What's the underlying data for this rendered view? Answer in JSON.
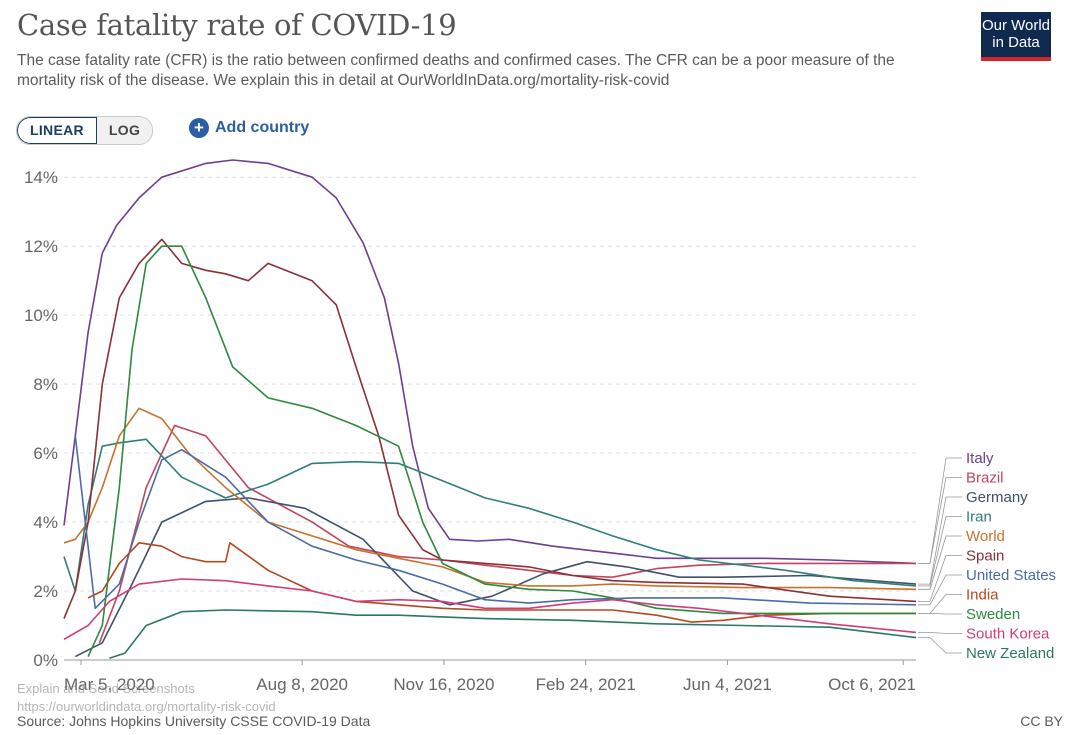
{
  "header": {
    "title": "Case fatality rate of COVID-19",
    "subtitle": "The case fatality rate (CFR) is the ratio between confirmed deaths and confirmed cases. The CFR can be a poor measure of the mortality risk of the disease. We explain this in detail at OurWorldInData.org/mortality-risk-covid",
    "logo_line1": "Our World",
    "logo_line2": "in Data"
  },
  "controls": {
    "linear_label": "LINEAR",
    "log_label": "LOG",
    "add_country_label": "Add country",
    "plus_icon": "plus-circle-icon"
  },
  "footer": {
    "source": "Source: Johns Hopkins University CSSE COVID-19 Data",
    "license": "CC BY",
    "overlay_text": "Explain and Send Screenshots",
    "overlay_url": "https://ourworldindata.org/mortality-risk-covid"
  },
  "chart_data": {
    "type": "line",
    "title": "Case fatality rate of COVID-19",
    "xlabel": "",
    "ylabel": "",
    "ylim": [
      0,
      14.5
    ],
    "x_ticks": [
      "Mar 5, 2020",
      "Aug 8, 2020",
      "Nov 16, 2020",
      "Feb 24, 2021",
      "Jun 4, 2021",
      "Oct 6, 2021"
    ],
    "y_ticks": [
      "0%",
      "2%",
      "4%",
      "6%",
      "8%",
      "10%",
      "12%",
      "14%"
    ],
    "grid": true,
    "legend_position": "right",
    "series": [
      {
        "name": "Italy",
        "color": "#6d3e91",
        "x": [
          "2020-02-22",
          "2020-03-01",
          "2020-03-10",
          "2020-03-20",
          "2020-03-30",
          "2020-04-15",
          "2020-05-01",
          "2020-06-01",
          "2020-06-20",
          "2020-07-15",
          "2020-08-15",
          "2020-09-01",
          "2020-09-20",
          "2020-10-05",
          "2020-10-15",
          "2020-10-25",
          "2020-11-05",
          "2020-11-20",
          "2020-12-10",
          "2021-01-01",
          "2021-02-01",
          "2021-03-15",
          "2021-04-15",
          "2021-05-15",
          "2021-07-01",
          "2021-08-15",
          "2021-10-15"
        ],
        "y": [
          3.9,
          6.5,
          9.5,
          11.8,
          12.6,
          13.4,
          14.0,
          14.4,
          14.5,
          14.4,
          14.0,
          13.4,
          12.1,
          10.5,
          8.6,
          6.2,
          4.4,
          3.5,
          3.45,
          3.5,
          3.3,
          3.1,
          2.95,
          2.95,
          2.95,
          2.9,
          2.8
        ]
      },
      {
        "name": "Brazil",
        "color": "#c2455c",
        "x": [
          "2020-03-18",
          "2020-04-01",
          "2020-04-20",
          "2020-05-10",
          "2020-06-01",
          "2020-07-01",
          "2020-08-15",
          "2020-09-10",
          "2020-10-15",
          "2020-11-15",
          "2020-12-15",
          "2021-01-15",
          "2021-02-15",
          "2021-03-15",
          "2021-04-15",
          "2021-05-15",
          "2021-07-01",
          "2021-08-15",
          "2021-10-15"
        ],
        "y": [
          0.5,
          2.0,
          5.0,
          6.8,
          6.5,
          5.0,
          4.0,
          3.3,
          3.0,
          2.9,
          2.75,
          2.6,
          2.45,
          2.4,
          2.65,
          2.75,
          2.8,
          2.8,
          2.8
        ]
      },
      {
        "name": "Germany",
        "color": "#3f5168",
        "x": [
          "2020-03-01",
          "2020-03-20",
          "2020-04-10",
          "2020-05-01",
          "2020-06-01",
          "2020-07-01",
          "2020-08-10",
          "2020-09-20",
          "2020-10-25",
          "2020-11-20",
          "2020-12-20",
          "2021-01-25",
          "2021-02-25",
          "2021-03-25",
          "2021-05-01",
          "2021-06-01",
          "2021-08-01",
          "2021-10-15"
        ],
        "y": [
          0.1,
          0.5,
          2.2,
          4.0,
          4.6,
          4.7,
          4.4,
          3.5,
          2.0,
          1.6,
          1.85,
          2.5,
          2.85,
          2.7,
          2.4,
          2.4,
          2.45,
          2.2
        ]
      },
      {
        "name": "Iran",
        "color": "#2f7f7a",
        "x": [
          "2020-02-22",
          "2020-03-01",
          "2020-03-10",
          "2020-03-20",
          "2020-04-01",
          "2020-04-20",
          "2020-05-15",
          "2020-06-15",
          "2020-07-15",
          "2020-08-15",
          "2020-09-15",
          "2020-10-15",
          "2020-11-15",
          "2020-12-15",
          "2021-01-15",
          "2021-02-15",
          "2021-03-15",
          "2021-04-15",
          "2021-05-15",
          "2021-07-15",
          "2021-09-01",
          "2021-10-15"
        ],
        "y": [
          3.0,
          2.0,
          4.5,
          6.2,
          6.3,
          6.4,
          5.3,
          4.7,
          5.1,
          5.7,
          5.75,
          5.7,
          5.2,
          4.7,
          4.4,
          4.0,
          3.6,
          3.2,
          2.9,
          2.6,
          2.3,
          2.15
        ]
      },
      {
        "name": "World",
        "color": "#c8722d",
        "x": [
          "2020-02-22",
          "2020-03-01",
          "2020-03-10",
          "2020-03-20",
          "2020-04-01",
          "2020-04-15",
          "2020-05-01",
          "2020-05-20",
          "2020-06-15",
          "2020-07-15",
          "2020-08-15",
          "2020-09-15",
          "2020-10-15",
          "2020-11-15",
          "2020-12-15",
          "2021-01-15",
          "2021-02-15",
          "2021-03-15",
          "2021-04-15",
          "2021-06-15",
          "2021-08-15",
          "2021-10-15"
        ],
        "y": [
          3.4,
          3.5,
          4.0,
          5.0,
          6.5,
          7.3,
          7.0,
          6.0,
          5.0,
          4.0,
          3.6,
          3.2,
          2.95,
          2.7,
          2.25,
          2.15,
          2.15,
          2.2,
          2.15,
          2.1,
          2.1,
          2.05
        ]
      },
      {
        "name": "Spain",
        "color": "#8c2f36",
        "x": [
          "2020-02-22",
          "2020-03-01",
          "2020-03-10",
          "2020-03-20",
          "2020-04-01",
          "2020-04-15",
          "2020-05-01",
          "2020-05-15",
          "2020-06-01",
          "2020-06-15",
          "2020-07-01",
          "2020-07-15",
          "2020-08-15",
          "2020-09-01",
          "2020-09-15",
          "2020-10-01",
          "2020-10-15",
          "2020-11-01",
          "2020-11-15",
          "2020-12-15",
          "2021-01-15",
          "2021-02-15",
          "2021-03-15",
          "2021-04-15",
          "2021-06-15",
          "2021-08-15",
          "2021-10-15"
        ],
        "y": [
          1.2,
          2.0,
          4.0,
          8.0,
          10.5,
          11.5,
          12.2,
          11.5,
          11.3,
          11.2,
          11.0,
          11.5,
          11.0,
          10.3,
          8.5,
          6.5,
          4.2,
          3.2,
          2.9,
          2.8,
          2.7,
          2.45,
          2.3,
          2.25,
          2.2,
          1.85,
          1.7
        ]
      },
      {
        "name": "United States",
        "color": "#4b6ca8",
        "x": [
          "2020-03-01",
          "2020-03-15",
          "2020-04-01",
          "2020-04-15",
          "2020-05-01",
          "2020-05-15",
          "2020-06-15",
          "2020-07-15",
          "2020-08-15",
          "2020-09-15",
          "2020-10-15",
          "2020-11-15",
          "2020-12-15",
          "2021-01-15",
          "2021-02-15",
          "2021-04-01",
          "2021-06-01",
          "2021-08-01",
          "2021-10-15"
        ],
        "y": [
          6.5,
          1.5,
          2.2,
          4.0,
          5.8,
          6.1,
          5.3,
          4.0,
          3.3,
          2.9,
          2.6,
          2.2,
          1.75,
          1.65,
          1.75,
          1.8,
          1.8,
          1.65,
          1.6
        ]
      },
      {
        "name": "India",
        "color": "#b5481e",
        "x": [
          "2020-03-10",
          "2020-03-20",
          "2020-04-01",
          "2020-04-15",
          "2020-05-01",
          "2020-05-15",
          "2020-06-01",
          "2020-06-15",
          "2020-06-18",
          "2020-07-15",
          "2020-08-15",
          "2020-09-15",
          "2020-10-15",
          "2020-11-15",
          "2020-12-15",
          "2021-01-15",
          "2021-02-15",
          "2021-03-15",
          "2021-04-15",
          "2021-05-10",
          "2021-06-01",
          "2021-07-01",
          "2021-08-15",
          "2021-10-15"
        ],
        "y": [
          1.8,
          2.0,
          2.8,
          3.4,
          3.3,
          3.0,
          2.85,
          2.85,
          3.4,
          2.6,
          2.0,
          1.7,
          1.6,
          1.5,
          1.45,
          1.45,
          1.45,
          1.45,
          1.3,
          1.1,
          1.15,
          1.3,
          1.35,
          1.35
        ]
      },
      {
        "name": "Sweden",
        "color": "#2d8a3e",
        "x": [
          "2020-03-10",
          "2020-03-20",
          "2020-04-01",
          "2020-04-10",
          "2020-04-20",
          "2020-05-01",
          "2020-05-15",
          "2020-06-01",
          "2020-06-20",
          "2020-07-15",
          "2020-08-15",
          "2020-09-15",
          "2020-10-15",
          "2020-11-01",
          "2020-11-15",
          "2020-12-15",
          "2021-01-15",
          "2021-02-15",
          "2021-03-15",
          "2021-04-15",
          "2021-06-01",
          "2021-08-15",
          "2021-10-15"
        ],
        "y": [
          0.1,
          1.0,
          5.0,
          9.0,
          11.5,
          12.0,
          12.0,
          10.5,
          8.5,
          7.6,
          7.3,
          6.8,
          6.2,
          4.0,
          2.8,
          2.2,
          2.05,
          2.0,
          1.8,
          1.5,
          1.35,
          1.35,
          1.35
        ]
      },
      {
        "name": "South Korea",
        "color": "#d13d7a",
        "x": [
          "2020-02-22",
          "2020-03-10",
          "2020-03-25",
          "2020-04-15",
          "2020-05-15",
          "2020-06-15",
          "2020-07-15",
          "2020-08-15",
          "2020-09-15",
          "2020-10-15",
          "2020-11-15",
          "2020-12-15",
          "2021-01-15",
          "2021-02-15",
          "2021-03-15",
          "2021-04-15",
          "2021-05-15",
          "2021-06-15",
          "2021-07-15",
          "2021-08-15",
          "2021-10-15"
        ],
        "y": [
          0.6,
          1.0,
          1.7,
          2.2,
          2.35,
          2.3,
          2.15,
          2.0,
          1.7,
          1.75,
          1.7,
          1.5,
          1.5,
          1.65,
          1.75,
          1.6,
          1.5,
          1.35,
          1.2,
          1.05,
          0.8
        ]
      },
      {
        "name": "New Zealand",
        "color": "#2a7a5e",
        "x": [
          "2020-03-25",
          "2020-04-05",
          "2020-04-20",
          "2020-05-15",
          "2020-06-15",
          "2020-08-15",
          "2020-09-15",
          "2020-10-15",
          "2020-11-15",
          "2020-12-15",
          "2021-02-15",
          "2021-04-15",
          "2021-06-15",
          "2021-08-15",
          "2021-10-15"
        ],
        "y": [
          0.05,
          0.2,
          1.0,
          1.4,
          1.45,
          1.4,
          1.3,
          1.3,
          1.25,
          1.2,
          1.15,
          1.05,
          1.0,
          0.95,
          0.65
        ]
      }
    ]
  }
}
